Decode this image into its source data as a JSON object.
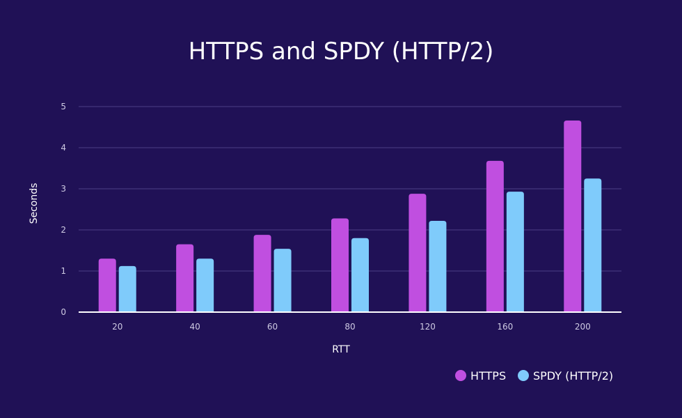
{
  "chart_data": {
    "type": "bar",
    "title": "HTTPS and SPDY (HTTP/2)",
    "xlabel": "RTT",
    "ylabel": "Seconds",
    "categories": [
      "20",
      "40",
      "60",
      "80",
      "120",
      "160",
      "200"
    ],
    "series": [
      {
        "name": "HTTPS",
        "color": "#c04fe0",
        "values": [
          1.3,
          1.65,
          1.88,
          2.28,
          2.88,
          3.68,
          4.66
        ]
      },
      {
        "name": "SPDY (HTTP/2)",
        "color": "#7fcbfb",
        "values": [
          1.12,
          1.3,
          1.54,
          1.8,
          2.22,
          2.93,
          3.25
        ]
      }
    ],
    "ylim": [
      0,
      5
    ],
    "yticks": [
      0,
      1,
      2,
      3,
      4,
      5
    ],
    "grid": true,
    "legend_position": "bottom-right"
  }
}
